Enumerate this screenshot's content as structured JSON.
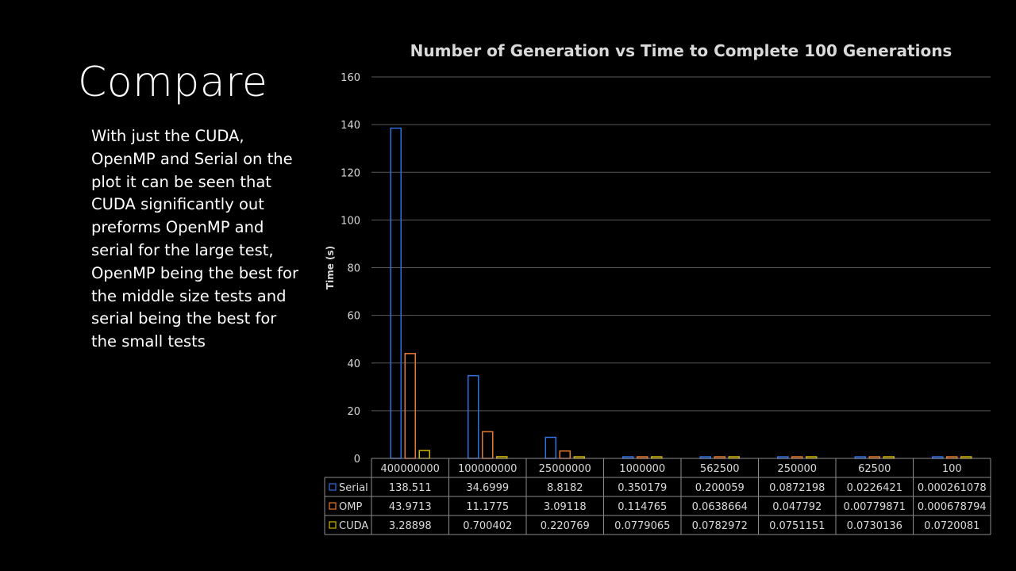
{
  "slide": {
    "title": "Compare",
    "body": "With just the CUDA, OpenMP and Serial on the plot it can be seen that CUDA significantly out preforms OpenMP and serial for the large test, OpenMP being the best for the middle size tests and serial being the best for the small tests"
  },
  "chart_data": {
    "type": "bar",
    "title": "Number of Generation vs Time to Complete 100 Generations",
    "xlabel": "",
    "ylabel": "Time (s)",
    "ylim": [
      0,
      160
    ],
    "yticks": [
      0,
      20,
      40,
      60,
      80,
      100,
      120,
      140,
      160
    ],
    "grid": true,
    "legend": "data-table",
    "categories": [
      "400000000",
      "100000000",
      "25000000",
      "1000000",
      "562500",
      "250000",
      "62500",
      "100"
    ],
    "series": [
      {
        "name": "Serial",
        "color": "#2f6fe0",
        "values": [
          138.511,
          34.6999,
          8.8182,
          0.350179,
          0.200059,
          0.0872198,
          0.0226421,
          0.000261078
        ],
        "labels": [
          "138.511",
          "34.6999",
          "8.8182",
          "0.350179",
          "0.200059",
          "0.0872198",
          "0.0226421",
          "0.000261078"
        ]
      },
      {
        "name": "OMP",
        "color": "#e8782c",
        "values": [
          43.9713,
          11.1775,
          3.09118,
          0.114765,
          0.0638664,
          0.047792,
          0.00779871,
          0.000678794
        ],
        "labels": [
          "43.9713",
          "11.1775",
          "3.09118",
          "0.114765",
          "0.0638664",
          "0.047792",
          "0.00779871",
          "0.000678794"
        ]
      },
      {
        "name": "CUDA",
        "color": "#d6b400",
        "values": [
          3.28898,
          0.700402,
          0.220769,
          0.0779065,
          0.0782972,
          0.0751151,
          0.0730136,
          0.0720081
        ],
        "labels": [
          "3.28898",
          "0.700402",
          "0.220769",
          "0.0779065",
          "0.0782972",
          "0.0751151",
          "0.0730136",
          "0.0720081"
        ]
      }
    ]
  }
}
